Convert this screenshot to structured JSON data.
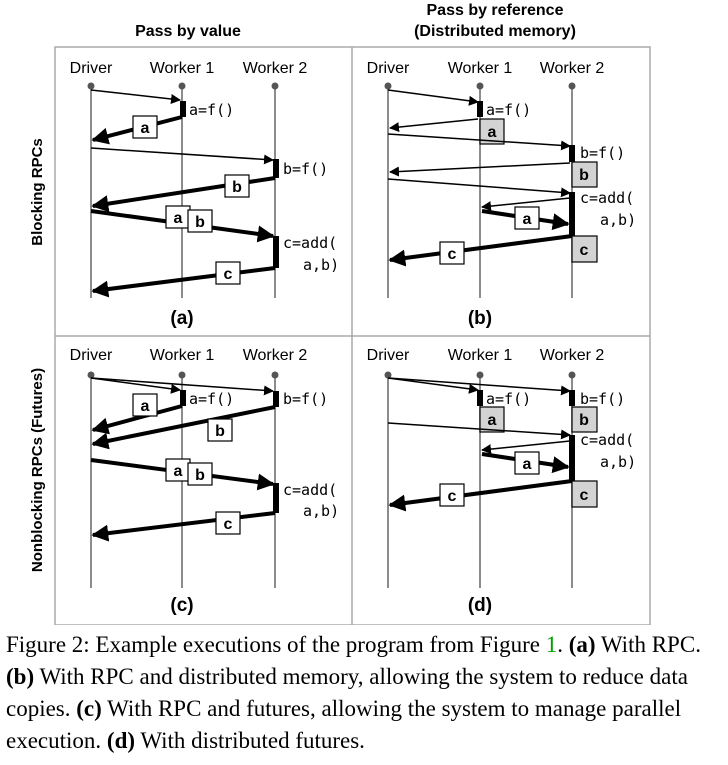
{
  "column_headers": {
    "left": [
      "Pass by value"
    ],
    "right": [
      "Pass by reference",
      "(Distributed memory)"
    ]
  },
  "row_headers": {
    "top": "Blocking RPCs",
    "bottom": "Nonblocking RPCs (Futures)"
  },
  "actors": [
    "Driver",
    "Worker 1",
    "Worker 2"
  ],
  "panels": [
    {
      "id": "a",
      "label": "(a)"
    },
    {
      "id": "b",
      "label": "(b)"
    },
    {
      "id": "c",
      "label": "(c)"
    },
    {
      "id": "d",
      "label": "(d)"
    }
  ],
  "code": {
    "a_f": "a=f()",
    "b_f": "b=f()",
    "c_add_1": "c=add(",
    "c_add_2": "a,b)"
  },
  "values": {
    "a": "a",
    "b": "b",
    "c": "c"
  },
  "caption": {
    "prefix": "Figure 2: Example executions of the program from Figure ",
    "figref": "1",
    "p1": ". ",
    "a_label": "(a)",
    "a_text": " With RPC. ",
    "b_label": "(b)",
    "b_text": " With RPC and distributed memory, allowing the system to reduce data copies. ",
    "c_label": "(c)",
    "c_text": " With RPC and futures, allowing the system to manage parallel execution. ",
    "d_label": "(d)",
    "d_text": " With distributed futures."
  }
}
